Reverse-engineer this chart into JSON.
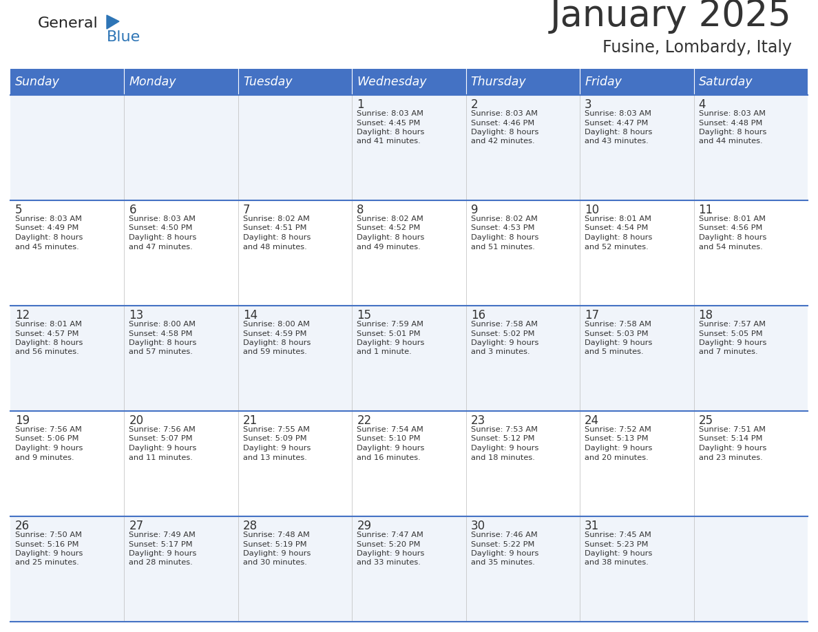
{
  "title": "January 2025",
  "subtitle": "Fusine, Lombardy, Italy",
  "days_of_week": [
    "Sunday",
    "Monday",
    "Tuesday",
    "Wednesday",
    "Thursday",
    "Friday",
    "Saturday"
  ],
  "header_bg": "#4472C4",
  "header_text": "#FFFFFF",
  "cell_bg_light": "#FFFFFF",
  "cell_bg_alt": "#F0F4FA",
  "row_line_color": "#4472C4",
  "text_color": "#333333",
  "logo_general_color": "#222222",
  "logo_blue_color": "#2E75B6",
  "calendar": [
    [
      {
        "day": null,
        "sunrise": null,
        "sunset": null,
        "daylight_line1": null,
        "daylight_line2": null
      },
      {
        "day": null,
        "sunrise": null,
        "sunset": null,
        "daylight_line1": null,
        "daylight_line2": null
      },
      {
        "day": null,
        "sunrise": null,
        "sunset": null,
        "daylight_line1": null,
        "daylight_line2": null
      },
      {
        "day": 1,
        "sunrise": "8:03 AM",
        "sunset": "4:45 PM",
        "daylight_line1": "8 hours",
        "daylight_line2": "and 41 minutes."
      },
      {
        "day": 2,
        "sunrise": "8:03 AM",
        "sunset": "4:46 PM",
        "daylight_line1": "8 hours",
        "daylight_line2": "and 42 minutes."
      },
      {
        "day": 3,
        "sunrise": "8:03 AM",
        "sunset": "4:47 PM",
        "daylight_line1": "8 hours",
        "daylight_line2": "and 43 minutes."
      },
      {
        "day": 4,
        "sunrise": "8:03 AM",
        "sunset": "4:48 PM",
        "daylight_line1": "8 hours",
        "daylight_line2": "and 44 minutes."
      }
    ],
    [
      {
        "day": 5,
        "sunrise": "8:03 AM",
        "sunset": "4:49 PM",
        "daylight_line1": "8 hours",
        "daylight_line2": "and 45 minutes."
      },
      {
        "day": 6,
        "sunrise": "8:03 AM",
        "sunset": "4:50 PM",
        "daylight_line1": "8 hours",
        "daylight_line2": "and 47 minutes."
      },
      {
        "day": 7,
        "sunrise": "8:02 AM",
        "sunset": "4:51 PM",
        "daylight_line1": "8 hours",
        "daylight_line2": "and 48 minutes."
      },
      {
        "day": 8,
        "sunrise": "8:02 AM",
        "sunset": "4:52 PM",
        "daylight_line1": "8 hours",
        "daylight_line2": "and 49 minutes."
      },
      {
        "day": 9,
        "sunrise": "8:02 AM",
        "sunset": "4:53 PM",
        "daylight_line1": "8 hours",
        "daylight_line2": "and 51 minutes."
      },
      {
        "day": 10,
        "sunrise": "8:01 AM",
        "sunset": "4:54 PM",
        "daylight_line1": "8 hours",
        "daylight_line2": "and 52 minutes."
      },
      {
        "day": 11,
        "sunrise": "8:01 AM",
        "sunset": "4:56 PM",
        "daylight_line1": "8 hours",
        "daylight_line2": "and 54 minutes."
      }
    ],
    [
      {
        "day": 12,
        "sunrise": "8:01 AM",
        "sunset": "4:57 PM",
        "daylight_line1": "8 hours",
        "daylight_line2": "and 56 minutes."
      },
      {
        "day": 13,
        "sunrise": "8:00 AM",
        "sunset": "4:58 PM",
        "daylight_line1": "8 hours",
        "daylight_line2": "and 57 minutes."
      },
      {
        "day": 14,
        "sunrise": "8:00 AM",
        "sunset": "4:59 PM",
        "daylight_line1": "8 hours",
        "daylight_line2": "and 59 minutes."
      },
      {
        "day": 15,
        "sunrise": "7:59 AM",
        "sunset": "5:01 PM",
        "daylight_line1": "9 hours",
        "daylight_line2": "and 1 minute."
      },
      {
        "day": 16,
        "sunrise": "7:58 AM",
        "sunset": "5:02 PM",
        "daylight_line1": "9 hours",
        "daylight_line2": "and 3 minutes."
      },
      {
        "day": 17,
        "sunrise": "7:58 AM",
        "sunset": "5:03 PM",
        "daylight_line1": "9 hours",
        "daylight_line2": "and 5 minutes."
      },
      {
        "day": 18,
        "sunrise": "7:57 AM",
        "sunset": "5:05 PM",
        "daylight_line1": "9 hours",
        "daylight_line2": "and 7 minutes."
      }
    ],
    [
      {
        "day": 19,
        "sunrise": "7:56 AM",
        "sunset": "5:06 PM",
        "daylight_line1": "9 hours",
        "daylight_line2": "and 9 minutes."
      },
      {
        "day": 20,
        "sunrise": "7:56 AM",
        "sunset": "5:07 PM",
        "daylight_line1": "9 hours",
        "daylight_line2": "and 11 minutes."
      },
      {
        "day": 21,
        "sunrise": "7:55 AM",
        "sunset": "5:09 PM",
        "daylight_line1": "9 hours",
        "daylight_line2": "and 13 minutes."
      },
      {
        "day": 22,
        "sunrise": "7:54 AM",
        "sunset": "5:10 PM",
        "daylight_line1": "9 hours",
        "daylight_line2": "and 16 minutes."
      },
      {
        "day": 23,
        "sunrise": "7:53 AM",
        "sunset": "5:12 PM",
        "daylight_line1": "9 hours",
        "daylight_line2": "and 18 minutes."
      },
      {
        "day": 24,
        "sunrise": "7:52 AM",
        "sunset": "5:13 PM",
        "daylight_line1": "9 hours",
        "daylight_line2": "and 20 minutes."
      },
      {
        "day": 25,
        "sunrise": "7:51 AM",
        "sunset": "5:14 PM",
        "daylight_line1": "9 hours",
        "daylight_line2": "and 23 minutes."
      }
    ],
    [
      {
        "day": 26,
        "sunrise": "7:50 AM",
        "sunset": "5:16 PM",
        "daylight_line1": "9 hours",
        "daylight_line2": "and 25 minutes."
      },
      {
        "day": 27,
        "sunrise": "7:49 AM",
        "sunset": "5:17 PM",
        "daylight_line1": "9 hours",
        "daylight_line2": "and 28 minutes."
      },
      {
        "day": 28,
        "sunrise": "7:48 AM",
        "sunset": "5:19 PM",
        "daylight_line1": "9 hours",
        "daylight_line2": "and 30 minutes."
      },
      {
        "day": 29,
        "sunrise": "7:47 AM",
        "sunset": "5:20 PM",
        "daylight_line1": "9 hours",
        "daylight_line2": "and 33 minutes."
      },
      {
        "day": 30,
        "sunrise": "7:46 AM",
        "sunset": "5:22 PM",
        "daylight_line1": "9 hours",
        "daylight_line2": "and 35 minutes."
      },
      {
        "day": 31,
        "sunrise": "7:45 AM",
        "sunset": "5:23 PM",
        "daylight_line1": "9 hours",
        "daylight_line2": "and 38 minutes."
      },
      {
        "day": null,
        "sunrise": null,
        "sunset": null,
        "daylight_line1": null,
        "daylight_line2": null
      }
    ]
  ]
}
